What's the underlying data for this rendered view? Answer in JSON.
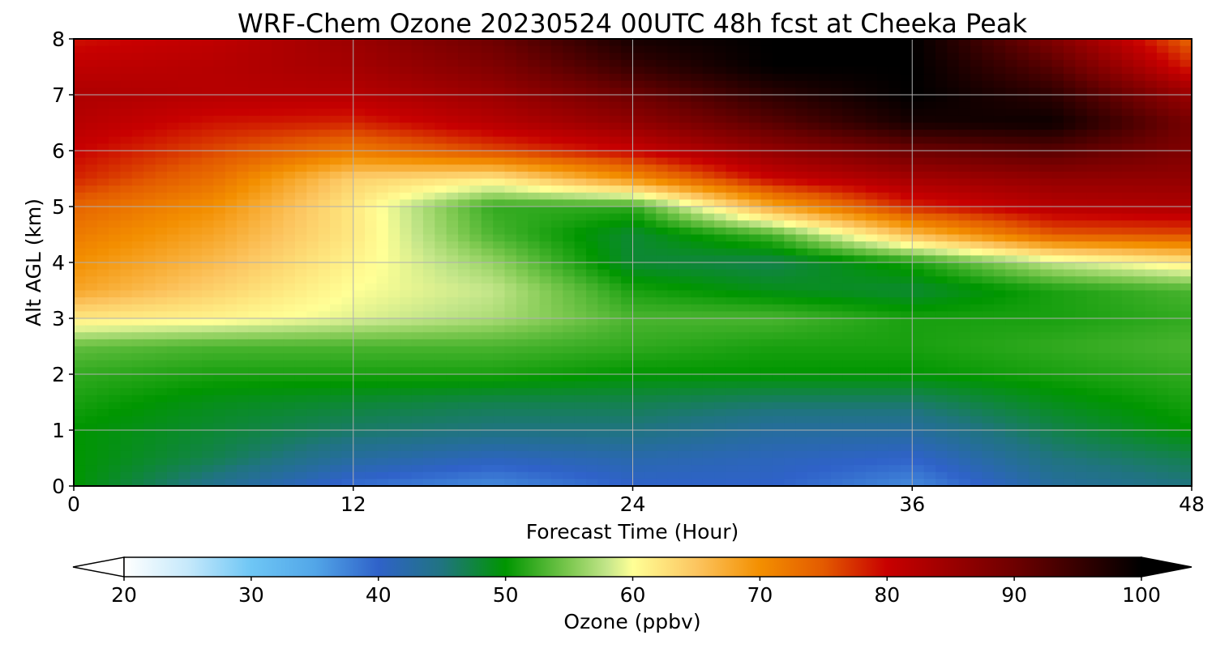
{
  "chart_data": {
    "type": "heatmap",
    "title": "WRF-Chem Ozone  20230524 00UTC 48h fcst at Cheeka Peak",
    "xlabel": "Forecast Time (Hour)",
    "ylabel": "Alt AGL (km)",
    "xlim": [
      0,
      48
    ],
    "ylim": [
      0,
      8
    ],
    "x_ticks": [
      "0",
      "12",
      "24",
      "36",
      "48"
    ],
    "y_ticks": [
      "0",
      "1",
      "2",
      "3",
      "4",
      "5",
      "6",
      "7",
      "8"
    ],
    "grid": true,
    "x": [
      0,
      6,
      12,
      18,
      24,
      30,
      36,
      42,
      48
    ],
    "y": [
      0,
      0.5,
      1,
      1.5,
      2,
      2.5,
      3,
      3.5,
      4,
      4.5,
      5,
      5.5,
      6,
      6.5,
      7,
      7.5,
      8
    ],
    "z": [
      [
        50,
        44,
        39,
        37,
        40,
        40,
        37,
        43,
        45
      ],
      [
        50,
        47,
        43,
        41,
        42,
        41,
        40,
        45,
        47
      ],
      [
        50,
        48,
        46,
        45,
        45,
        43,
        43,
        47,
        50
      ],
      [
        51,
        49,
        48,
        47,
        47,
        46,
        46,
        49,
        51
      ],
      [
        52,
        51,
        51,
        51,
        50,
        50,
        50,
        51,
        52
      ],
      [
        54,
        53,
        53,
        53,
        52,
        51,
        51,
        52,
        53
      ],
      [
        62,
        61,
        59,
        57,
        53,
        53,
        51,
        51,
        52
      ],
      [
        68,
        64,
        60,
        58,
        51,
        49,
        48,
        51,
        53
      ],
      [
        70,
        66,
        61,
        56,
        48,
        47,
        51,
        58,
        62
      ],
      [
        72,
        68,
        62,
        53,
        48,
        53,
        66,
        75,
        76
      ],
      [
        74,
        70,
        62,
        52,
        52,
        68,
        78,
        82,
        83
      ],
      [
        78,
        73,
        64,
        62,
        70,
        80,
        84,
        86,
        86
      ],
      [
        80,
        76,
        72,
        76,
        80,
        86,
        90,
        92,
        88
      ],
      [
        82,
        79,
        78,
        82,
        86,
        92,
        98,
        99,
        89
      ],
      [
        83,
        82,
        82,
        85,
        90,
        96,
        100,
        96,
        85
      ],
      [
        81,
        82,
        84,
        88,
        95,
        100,
        100,
        92,
        78
      ],
      [
        79,
        81,
        85,
        90,
        98,
        100,
        100,
        88,
        74
      ]
    ],
    "colorbar": {
      "label": "Ozone  (ppbv)",
      "min": 20,
      "max": 100,
      "ticks": [
        "20",
        "30",
        "40",
        "50",
        "60",
        "70",
        "80",
        "90",
        "100"
      ],
      "extend": "both",
      "stops": [
        {
          "v": 20,
          "c": "#ffffff"
        },
        {
          "v": 25,
          "c": "#c6e9fb"
        },
        {
          "v": 30,
          "c": "#6ec6f5"
        },
        {
          "v": 35,
          "c": "#52a6e8"
        },
        {
          "v": 40,
          "c": "#2f62c9"
        },
        {
          "v": 45,
          "c": "#207480"
        },
        {
          "v": 50,
          "c": "#009600"
        },
        {
          "v": 55,
          "c": "#7cc84f"
        },
        {
          "v": 58,
          "c": "#c4e68a"
        },
        {
          "v": 60,
          "c": "#ffff96"
        },
        {
          "v": 65,
          "c": "#fcc560"
        },
        {
          "v": 70,
          "c": "#f38f00"
        },
        {
          "v": 75,
          "c": "#e35a00"
        },
        {
          "v": 80,
          "c": "#c80000"
        },
        {
          "v": 90,
          "c": "#6e0000"
        },
        {
          "v": 100,
          "c": "#000000"
        }
      ]
    }
  }
}
